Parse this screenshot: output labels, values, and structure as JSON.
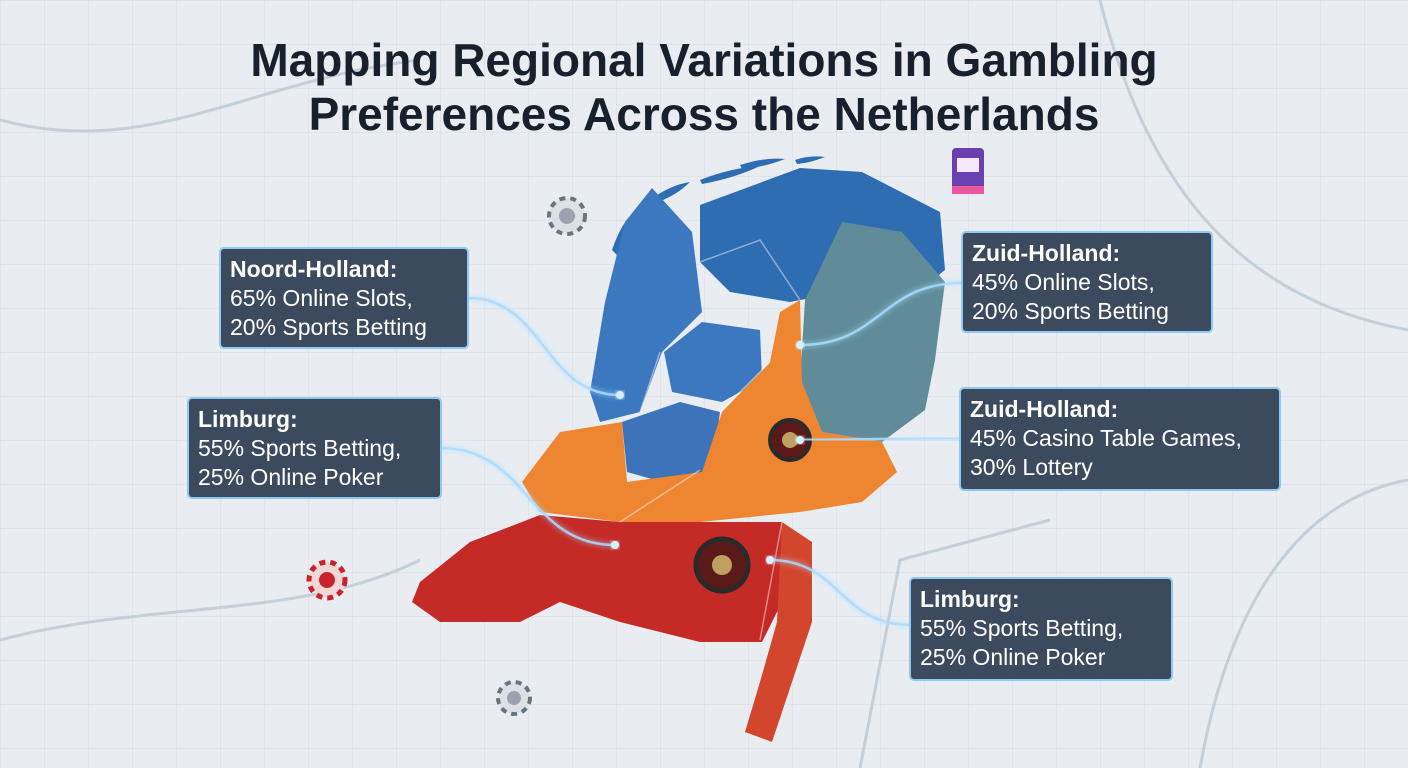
{
  "title_lines": [
    "Mapping Regional Variations in Gambling",
    "Preferences Across the Netherlands"
  ],
  "callouts": [
    {
      "region": "Noord-Holland:",
      "lines": [
        "65% Online Slots,",
        "20% Sports Betting"
      ]
    },
    {
      "region": "Limburg:",
      "lines": [
        "55% Sports Betting,",
        "25% Online Poker"
      ]
    },
    {
      "region": "Zuid-Holland:",
      "lines": [
        "45% Online Slots,",
        "20% Sports Betting"
      ]
    },
    {
      "region": "Zuid-Holland:",
      "lines": [
        "45% Casino Table Games,",
        "30% Lottery"
      ]
    },
    {
      "region": "Limburg:",
      "lines": [
        "55% Sports Betting,",
        "25% Online Poker"
      ]
    }
  ]
}
